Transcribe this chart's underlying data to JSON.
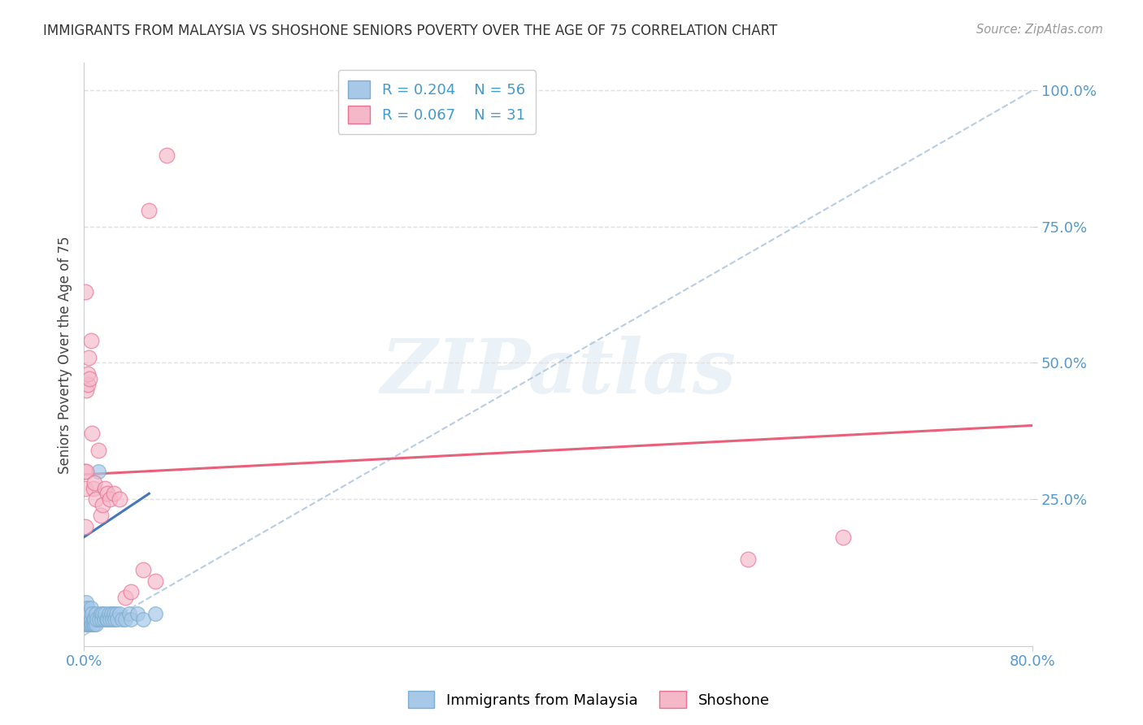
{
  "title": "IMMIGRANTS FROM MALAYSIA VS SHOSHONE SENIORS POVERTY OVER THE AGE OF 75 CORRELATION CHART",
  "source": "Source: ZipAtlas.com",
  "ylabel": "Seniors Poverty Over the Age of 75",
  "xlim": [
    0.0,
    0.8
  ],
  "ylim": [
    -0.02,
    1.05
  ],
  "background_color": "#ffffff",
  "watermark_text": "ZIPatlas",
  "legend_r1": "R = 0.204",
  "legend_n1": "N = 56",
  "legend_r2": "R = 0.067",
  "legend_n2": "N = 31",
  "color_blue": "#a8c8e8",
  "color_blue_edge": "#7aaed0",
  "color_pink": "#f5b8c8",
  "color_pink_edge": "#e87090",
  "color_blue_line": "#4477bb",
  "color_pink_line": "#e8607a",
  "color_dashed": "#b0c8e0",
  "color_grid": "#e0e0e0",
  "blue_scatter_x": [
    0.0005,
    0.001,
    0.001,
    0.001,
    0.0015,
    0.002,
    0.002,
    0.002,
    0.002,
    0.003,
    0.003,
    0.003,
    0.003,
    0.004,
    0.004,
    0.004,
    0.005,
    0.005,
    0.005,
    0.006,
    0.006,
    0.006,
    0.007,
    0.007,
    0.008,
    0.008,
    0.009,
    0.009,
    0.01,
    0.01,
    0.011,
    0.012,
    0.013,
    0.014,
    0.015,
    0.016,
    0.017,
    0.018,
    0.019,
    0.02,
    0.021,
    0.022,
    0.023,
    0.024,
    0.025,
    0.026,
    0.027,
    0.028,
    0.03,
    0.032,
    0.035,
    0.038,
    0.04,
    0.045,
    0.05,
    0.06
  ],
  "blue_scatter_y": [
    0.03,
    0.02,
    0.04,
    0.05,
    0.03,
    0.02,
    0.03,
    0.05,
    0.06,
    0.02,
    0.03,
    0.04,
    0.05,
    0.02,
    0.03,
    0.04,
    0.02,
    0.03,
    0.04,
    0.02,
    0.03,
    0.05,
    0.02,
    0.04,
    0.02,
    0.03,
    0.02,
    0.03,
    0.02,
    0.04,
    0.03,
    0.3,
    0.03,
    0.04,
    0.03,
    0.04,
    0.03,
    0.04,
    0.03,
    0.03,
    0.04,
    0.03,
    0.04,
    0.03,
    0.04,
    0.03,
    0.04,
    0.03,
    0.04,
    0.03,
    0.03,
    0.04,
    0.03,
    0.04,
    0.03,
    0.04
  ],
  "pink_scatter_x": [
    0.0005,
    0.001,
    0.001,
    0.0015,
    0.002,
    0.002,
    0.003,
    0.003,
    0.004,
    0.005,
    0.006,
    0.007,
    0.008,
    0.009,
    0.01,
    0.012,
    0.014,
    0.016,
    0.018,
    0.02,
    0.022,
    0.025,
    0.03,
    0.035,
    0.04,
    0.05,
    0.055,
    0.06,
    0.07,
    0.56,
    0.64
  ],
  "pink_scatter_y": [
    0.3,
    0.63,
    0.2,
    0.27,
    0.3,
    0.45,
    0.46,
    0.48,
    0.51,
    0.47,
    0.54,
    0.37,
    0.27,
    0.28,
    0.25,
    0.34,
    0.22,
    0.24,
    0.27,
    0.26,
    0.25,
    0.26,
    0.25,
    0.07,
    0.08,
    0.12,
    0.78,
    0.1,
    0.88,
    0.14,
    0.18
  ],
  "blue_line_x": [
    0.0,
    0.055
  ],
  "blue_line_y": [
    0.18,
    0.26
  ],
  "pink_line_x": [
    0.0,
    0.8
  ],
  "pink_line_y": [
    0.295,
    0.385
  ],
  "dashed_line_x": [
    0.0,
    0.8
  ],
  "dashed_line_y": [
    0.0,
    1.0
  ],
  "ytick_positions": [
    0.25,
    0.5,
    0.75,
    1.0
  ],
  "ytick_labels": [
    "25.0%",
    "50.0%",
    "75.0%",
    "100.0%"
  ],
  "xtick_positions": [
    0.0,
    0.8
  ],
  "xtick_labels": [
    "0.0%",
    "80.0%"
  ],
  "tick_color": "#5599cc",
  "title_color": "#333333",
  "source_color": "#999999"
}
